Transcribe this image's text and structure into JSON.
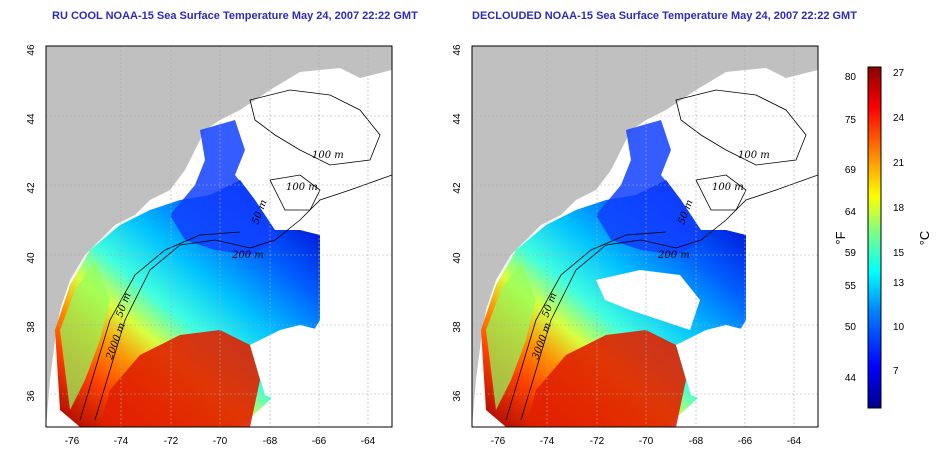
{
  "titles": {
    "left": "RU COOL NOAA-15 Sea Surface Temperature May 24, 2007 22:22 GMT",
    "right": "DECLOUDED NOAA-15 Sea Surface Temperature May 24, 2007 22:22 GMT"
  },
  "axes": {
    "x_ticks": [
      "-76",
      "-74",
      "-72",
      "-70",
      "-68",
      "-66",
      "-64"
    ],
    "y_ticks": [
      "46",
      "44",
      "42",
      "40",
      "38",
      "36"
    ]
  },
  "contour_labels": {
    "left": [
      "100 m",
      "100 m",
      "200 m",
      "50 m",
      "2000 m",
      "50 m"
    ],
    "right": [
      "100 m",
      "100 m",
      "200 m",
      "50 m",
      "3000 m",
      "50 m"
    ]
  },
  "colorbar": {
    "fahrenheit_unit": "°F",
    "celsius_unit": "°C",
    "fahrenheit_ticks": [
      "80",
      "75",
      "69",
      "64",
      "59",
      "55",
      "50",
      "44"
    ],
    "celsius_ticks": [
      "27",
      "24",
      "21",
      "18",
      "15",
      "13",
      "10",
      "7"
    ],
    "colors": [
      "#00008f",
      "#0000ff",
      "#0080ff",
      "#00ffff",
      "#80ff80",
      "#ffff00",
      "#ff8000",
      "#ff0000",
      "#8b0000"
    ]
  },
  "colors": {
    "land": "#c0c0c0",
    "no_data": "#ffffff",
    "title": "#2b2bbf"
  }
}
